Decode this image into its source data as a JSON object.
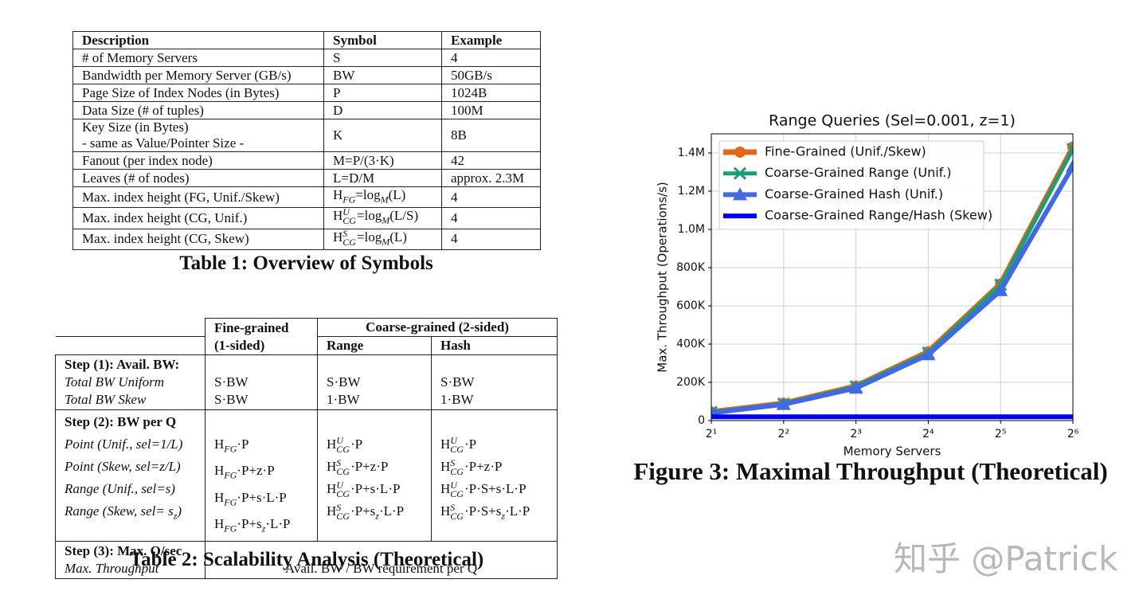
{
  "table1": {
    "columns": [
      "Description",
      "Symbol",
      "Example"
    ],
    "rows": [
      [
        "# of Memory Servers",
        "S",
        "4"
      ],
      [
        "Bandwidth per Memory Server (GB/s)",
        "BW",
        "50GB/s"
      ],
      [
        "Page Size of Index Nodes (in Bytes)",
        "P",
        "1024B"
      ],
      [
        "Data Size (# of tuples)",
        "D",
        "100M"
      ],
      [
        {
          "lines": [
            "Key Size (in Bytes)",
            "- same as Value/Pointer Size -"
          ]
        },
        "K",
        "8B"
      ],
      [
        "Fanout (per index node)",
        "M=P/(3·K)",
        "42"
      ],
      [
        "Leaves (# of nodes)",
        "L=D/M",
        "approx. 2.3M"
      ],
      [
        "Max. index height (FG, Unif./Skew)",
        [
          "H",
          {
            "sub": "FG"
          },
          "=log",
          {
            "sub": "M"
          },
          "(L)"
        ],
        "4"
      ],
      [
        "Max. index height (CG, Unif.)",
        [
          "H",
          {
            "sup": "U",
            "sub": "CG"
          },
          "=log",
          {
            "sub": "M"
          },
          "(L/S)"
        ],
        "4"
      ],
      [
        "Max. index height (CG, Skew)",
        [
          "H",
          {
            "sup": "S",
            "sub": "CG"
          },
          "=log",
          {
            "sub": "M"
          },
          "(L)"
        ],
        "4"
      ]
    ],
    "caption": "Table 1: Overview of Symbols"
  },
  "table2": {
    "header": {
      "fine": {
        "lines": [
          "Fine-grained",
          "(1-sided)"
        ]
      },
      "coarse": "Coarse-grained (2-sided)",
      "range": "Range",
      "hash": "Hash"
    },
    "sections": [
      {
        "step": "Step (1): Avail. BW:",
        "rows": [
          {
            "label": "Total BW Uniform",
            "cells": [
              "S·BW",
              "S·BW",
              "S·BW"
            ]
          },
          {
            "label": "Total BW Skew",
            "cells": [
              "S·BW",
              "1·BW",
              "1·BW"
            ]
          }
        ]
      },
      {
        "step": "Step (2): BW per Q",
        "rows": [
          {
            "label": "Point (Unif., sel=1/L)",
            "cells": [
              [
                "H",
                {
                  "sub": "FG"
                },
                "·P"
              ],
              [
                "H",
                {
                  "sup": "U",
                  "sub": "CG"
                },
                "·P"
              ],
              [
                "H",
                {
                  "sup": "U",
                  "sub": "CG"
                },
                "·P"
              ]
            ]
          },
          {
            "label": "Point (Skew, sel=z/L)",
            "cells": [
              [
                "H",
                {
                  "sub": "FG"
                },
                "·P+z·P"
              ],
              [
                "H",
                {
                  "sup": "S",
                  "sub": "CG"
                },
                "·P+z·P"
              ],
              [
                "H",
                {
                  "sup": "S",
                  "sub": "CG"
                },
                "·P+z·P"
              ]
            ]
          },
          {
            "label": "Range (Unif., sel=s)",
            "cells": [
              [
                "H",
                {
                  "sub": "FG"
                },
                "·P+s·L·P"
              ],
              [
                "H",
                {
                  "sup": "U",
                  "sub": "CG"
                },
                "·P+s·L·P"
              ],
              [
                "H",
                {
                  "sup": "U",
                  "sub": "CG"
                },
                "·P·S+s·L·P"
              ]
            ]
          },
          {
            "label": [
              "Range (Skew, sel= s",
              {
                "sub": "z"
              },
              ")"
            ],
            "cells": [
              [
                "H",
                {
                  "sub": "FG"
                },
                "·P+s",
                {
                  "sub": "z"
                },
                "·L·P"
              ],
              [
                "H",
                {
                  "sup": "S",
                  "sub": "CG"
                },
                "·P+s",
                {
                  "sub": "z"
                },
                "·L·P"
              ],
              [
                "H",
                {
                  "sup": "S",
                  "sub": "CG"
                },
                "·P·S+s",
                {
                  "sub": "z"
                },
                "·L·P"
              ]
            ]
          }
        ]
      },
      {
        "step": "Step (3): Max. Q/sec",
        "rows": [
          {
            "label": "Max. Throughput",
            "span": "Avail. BW / BW requirement per Q"
          }
        ]
      }
    ],
    "caption": "Table 2: Scalability Analysis (Theoretical)"
  },
  "chart_data": {
    "type": "line",
    "title": "Range Queries (Sel=0.001, z=1)",
    "x_label": "Memory Servers",
    "y_label": "Max. Throughput (Operations/s)",
    "x": [
      2,
      4,
      8,
      16,
      32,
      64
    ],
    "xscale": "log",
    "xlim": [
      2,
      64
    ],
    "xticks": [
      {
        "value": 2,
        "label": "2¹"
      },
      {
        "value": 4,
        "label": "2²"
      },
      {
        "value": 8,
        "label": "2³"
      },
      {
        "value": 16,
        "label": "2⁴"
      },
      {
        "value": 32,
        "label": "2⁵"
      },
      {
        "value": 64,
        "label": "2⁶"
      }
    ],
    "ylim": [
      0,
      1500000
    ],
    "yticks": [
      0,
      {
        "value": 200000,
        "label": "200K"
      },
      {
        "value": 400000,
        "label": "400K"
      },
      {
        "value": 600000,
        "label": "600K"
      },
      {
        "value": 800000,
        "label": "800K"
      },
      {
        "value": 1000000,
        "label": "1.0M"
      },
      {
        "value": 1200000,
        "label": "1.2M"
      },
      {
        "value": 1400000,
        "label": "1.4M"
      }
    ],
    "grid": true,
    "legend": "upper left",
    "series": [
      {
        "name": "Fine-Grained (Unif./Skew)",
        "color": "#e3661b",
        "marker": "o",
        "values": [
          45000,
          90000,
          180000,
          360000,
          715000,
          1430000
        ]
      },
      {
        "name": "Coarse-Grained Range (Unif.)",
        "color": "#1b9e77",
        "marker": "x",
        "values": [
          44000,
          88000,
          178000,
          355000,
          710000,
          1420000
        ]
      },
      {
        "name": "Coarse-Grained Hash (Unif.)",
        "color": "#4169e1",
        "marker": "^",
        "values": [
          40000,
          85000,
          170000,
          345000,
          680000,
          1330000
        ]
      },
      {
        "name": "Coarse-Grained Range/Hash (Skew)",
        "color": "#0000ee",
        "values": [
          20000,
          20000,
          20000,
          20000,
          20000,
          20000
        ]
      }
    ],
    "caption": "Figure 3: Maximal Throughput (Theoretical)"
  },
  "watermark": "知乎 @Patrick"
}
